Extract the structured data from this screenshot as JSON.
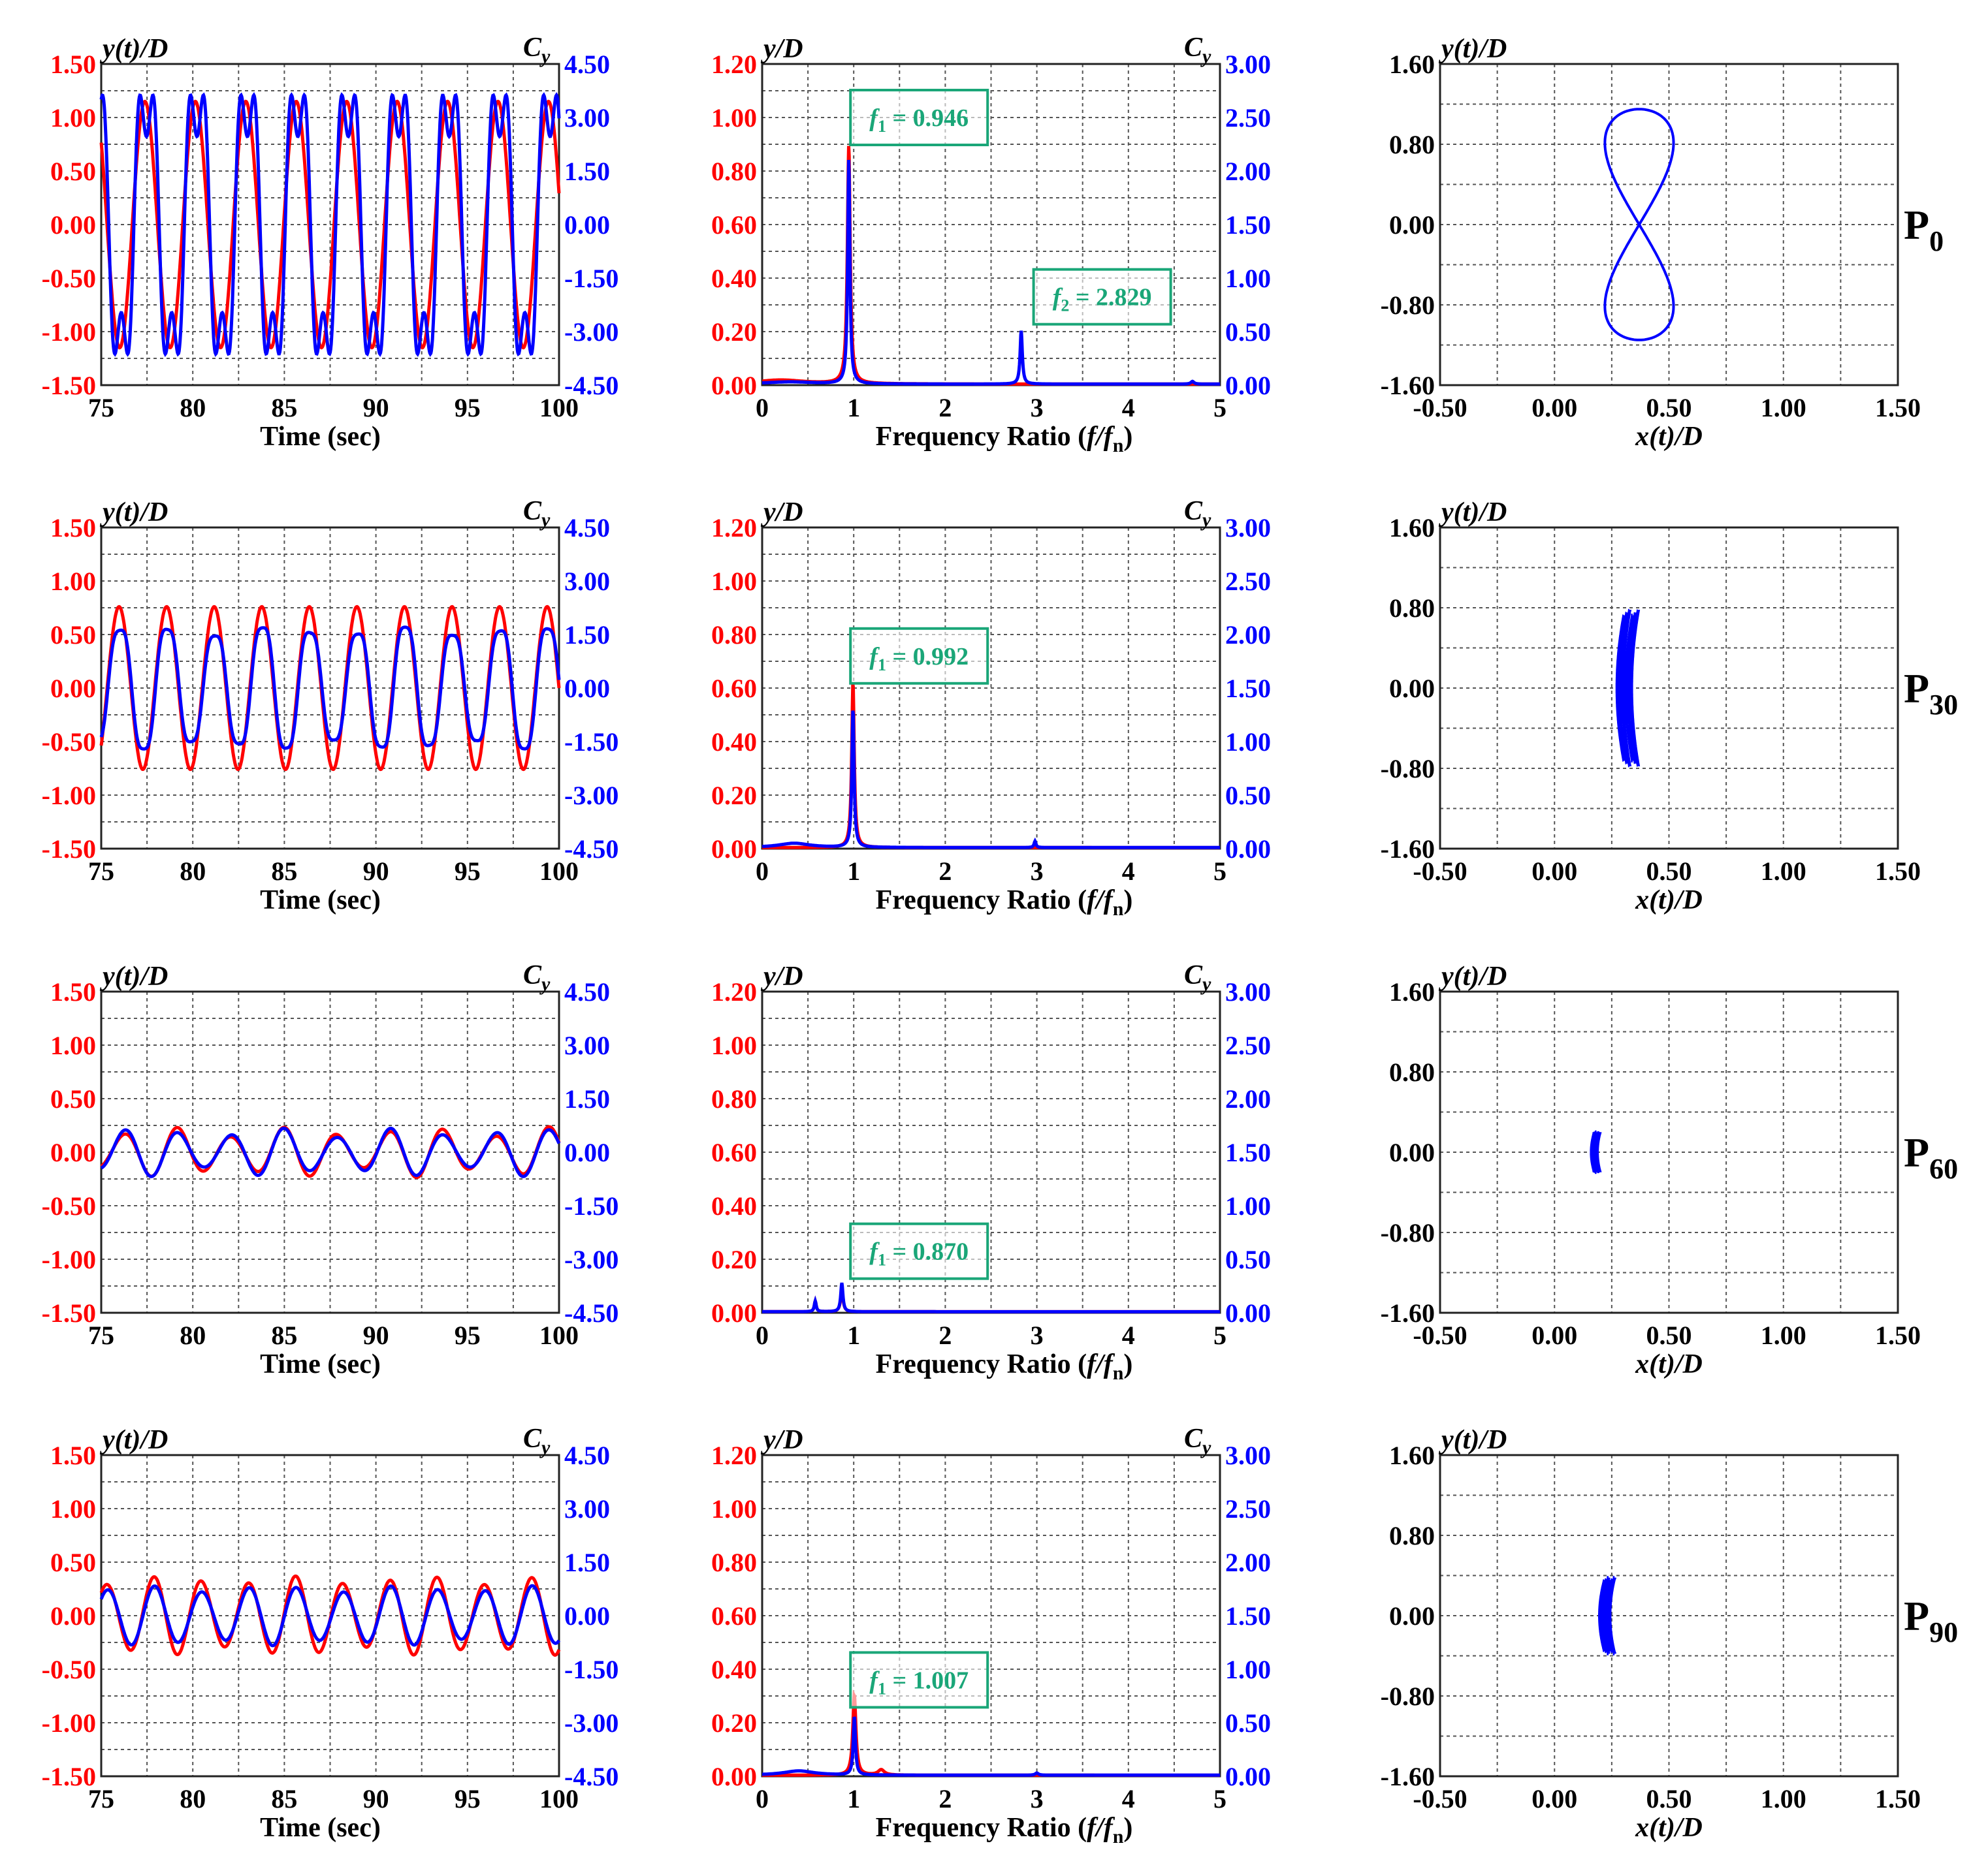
{
  "row_labels": [
    {
      "main": "P",
      "sub": "0"
    },
    {
      "main": "P",
      "sub": "30"
    },
    {
      "main": "P",
      "sub": "60"
    },
    {
      "main": "P",
      "sub": "90"
    }
  ],
  "panel_text": {
    "time_xlabel": "Time (sec)",
    "freq_xlabel_main": "Frequency Ratio (",
    "freq_xlabel_f": "f/f",
    "freq_xlabel_sub": "n",
    "freq_xlabel_close": ")",
    "time_ylabel": "y(t)/D",
    "freq_ylabel": "y/D",
    "orbit_ylabel": "y(t)/D",
    "orbit_xlabel": "x(t)/D",
    "right_label": "C",
    "right_label_sub": "y"
  },
  "colors": {
    "displacement": "#ff0000",
    "force": "#0000ff",
    "annotation": "#1aa678",
    "grid": "#555555"
  },
  "chart_data": [
    {
      "type": "line",
      "panel": "time-history",
      "row": "P0",
      "x_range": [
        75,
        100
      ],
      "x_ticks": [
        "75",
        "80",
        "85",
        "90",
        "95",
        "100"
      ],
      "ylim_left": [
        -1.5,
        1.5
      ],
      "y_ticks_left": [
        "1.50",
        "1.00",
        "0.50",
        "0.00",
        "-0.50",
        "-1.00",
        "-1.50"
      ],
      "ylim_right": [
        -4.5,
        4.5
      ],
      "y_ticks_right": [
        "4.50",
        "3.00",
        "1.50",
        "0.00",
        "-1.50",
        "-3.00",
        "-4.50"
      ],
      "series": [
        {
          "axis": "left",
          "amplitude": 1.15,
          "frequency_hz": 0.363,
          "phase": 1.0,
          "harmonic3": 0.0,
          "variation": 0.0
        },
        {
          "axis": "right",
          "amplitude": 3.0,
          "frequency_hz": 0.363,
          "phase": 0.8,
          "harmonic3": 0.35,
          "variation": 0.0
        }
      ]
    },
    {
      "type": "line",
      "panel": "spectrum",
      "row": "P0",
      "x_range": [
        0,
        5
      ],
      "x_ticks": [
        "0",
        "1",
        "2",
        "3",
        "4",
        "5"
      ],
      "ylim_left": [
        0,
        1.2
      ],
      "y_ticks_left": [
        "1.20",
        "1.00",
        "0.80",
        "0.60",
        "0.40",
        "0.20",
        "0.00"
      ],
      "ylim_right": [
        0,
        3.0
      ],
      "y_ticks_right": [
        "3.00",
        "2.50",
        "2.00",
        "1.50",
        "1.00",
        "0.50",
        "0.00"
      ],
      "peaks_left": [
        {
          "f": 0.946,
          "h": 0.89,
          "w": 0.045
        },
        {
          "f": 0.2,
          "h": 0.015,
          "w": 0.8
        }
      ],
      "peaks_right": [
        {
          "f": 0.946,
          "h": 2.1,
          "w": 0.035
        },
        {
          "f": 2.829,
          "h": 0.5,
          "w": 0.035
        },
        {
          "f": 4.7,
          "h": 0.025,
          "w": 0.05
        },
        {
          "f": 0.3,
          "h": 0.02,
          "w": 0.8
        }
      ],
      "annotations": [
        {
          "label": "1",
          "value": "0.946",
          "f": 1.0,
          "y": 1.0
        },
        {
          "label": "2",
          "value": "2.829",
          "f": 3.0,
          "y": 0.33
        }
      ]
    },
    {
      "type": "scatter",
      "panel": "orbit",
      "row": "P0",
      "x_range": [
        -0.5,
        1.5
      ],
      "x_ticks": [
        "-0.50",
        "0.00",
        "0.50",
        "1.00",
        "1.50"
      ],
      "ylim": [
        -1.6,
        1.6
      ],
      "y_ticks": [
        "1.60",
        "0.80",
        "0.00",
        "-0.80",
        "-1.60"
      ],
      "orbit": {
        "type": "figure8",
        "x_center": 0.37,
        "x_amp": 0.15,
        "y_amp": 1.15,
        "tilt": 0.0
      }
    },
    {
      "type": "line",
      "panel": "time-history",
      "row": "P30",
      "x_range": [
        75,
        100
      ],
      "x_ticks": [
        "75",
        "80",
        "85",
        "90",
        "95",
        "100"
      ],
      "ylim_left": [
        -1.5,
        1.5
      ],
      "y_ticks_left": [
        "1.50",
        "1.00",
        "0.50",
        "0.00",
        "-0.50",
        "-1.00",
        "-1.50"
      ],
      "ylim_right": [
        -4.5,
        4.5
      ],
      "y_ticks_right": [
        "4.50",
        "3.00",
        "1.50",
        "0.00",
        "-1.50",
        "-3.00",
        "-4.50"
      ],
      "series": [
        {
          "axis": "left",
          "amplitude": 0.76,
          "frequency_hz": 0.385,
          "phase": 0.0,
          "harmonic3": 0.0,
          "variation": 0.0
        },
        {
          "axis": "right",
          "amplitude": 1.65,
          "frequency_hz": 0.385,
          "phase": -0.1,
          "harmonic3": 0.1,
          "variation": 0.08
        }
      ]
    },
    {
      "type": "line",
      "panel": "spectrum",
      "row": "P30",
      "x_range": [
        0,
        5
      ],
      "x_ticks": [
        "0",
        "1",
        "2",
        "3",
        "4",
        "5"
      ],
      "ylim_left": [
        0,
        1.2
      ],
      "y_ticks_left": [
        "1.20",
        "1.00",
        "0.80",
        "0.60",
        "0.40",
        "0.20",
        "0.00"
      ],
      "ylim_right": [
        0,
        3.0
      ],
      "y_ticks_right": [
        "3.00",
        "2.50",
        "2.00",
        "1.50",
        "1.00",
        "0.50",
        "0.00"
      ],
      "peaks_left": [
        {
          "f": 0.992,
          "h": 0.62,
          "w": 0.04
        }
      ],
      "peaks_right": [
        {
          "f": 0.992,
          "h": 1.3,
          "w": 0.035
        },
        {
          "f": 2.98,
          "h": 0.06,
          "w": 0.03
        },
        {
          "f": 0.35,
          "h": 0.04,
          "w": 0.5
        }
      ],
      "annotations": [
        {
          "label": "1",
          "value": "0.992",
          "f": 1.0,
          "y": 0.72
        }
      ]
    },
    {
      "type": "scatter",
      "panel": "orbit",
      "row": "P30",
      "x_range": [
        -0.5,
        1.5
      ],
      "x_ticks": [
        "-0.50",
        "0.00",
        "0.50",
        "1.00",
        "1.50"
      ],
      "ylim": [
        -1.6,
        1.6
      ],
      "y_ticks": [
        "1.60",
        "0.80",
        "0.00",
        "-0.80",
        "-1.60"
      ],
      "orbit": {
        "type": "band",
        "x_center": 0.32,
        "x_amp": 0.05,
        "y_amp": 0.78,
        "tilt": 0.0
      }
    },
    {
      "type": "line",
      "panel": "time-history",
      "row": "P60",
      "x_range": [
        75,
        100
      ],
      "x_ticks": [
        "75",
        "80",
        "85",
        "90",
        "95",
        "100"
      ],
      "ylim_left": [
        -1.5,
        1.5
      ],
      "y_ticks_left": [
        "1.50",
        "1.00",
        "0.50",
        "0.00",
        "-0.50",
        "-1.00",
        "-1.50"
      ],
      "ylim_right": [
        -4.5,
        4.5
      ],
      "y_ticks_right": [
        "4.50",
        "3.00",
        "1.50",
        "0.00",
        "-1.50",
        "-3.00",
        "-4.50"
      ],
      "series": [
        {
          "axis": "left",
          "amplitude": 0.19,
          "frequency_hz": 0.345,
          "phase": -0.4,
          "harmonic3": 0.0,
          "variation": 0.25
        },
        {
          "axis": "right",
          "amplitude": 0.55,
          "frequency_hz": 0.345,
          "phase": -0.45,
          "harmonic3": 0.0,
          "variation": 0.25
        }
      ]
    },
    {
      "type": "line",
      "panel": "spectrum",
      "row": "P60",
      "x_range": [
        0,
        5
      ],
      "x_ticks": [
        "0",
        "1",
        "2",
        "3",
        "4",
        "5"
      ],
      "ylim_left": [
        0,
        1.2
      ],
      "y_ticks_left": [
        "1.20",
        "1.00",
        "0.80",
        "0.60",
        "0.40",
        "0.20",
        "0.00"
      ],
      "ylim_right": [
        0,
        3.0
      ],
      "y_ticks_right": [
        "3.00",
        "2.50",
        "2.00",
        "1.50",
        "1.00",
        "0.50",
        "0.00"
      ],
      "peaks_left": [
        {
          "f": 0.87,
          "h": 0.08,
          "w": 0.04
        },
        {
          "f": 0.58,
          "h": 0.04,
          "w": 0.03
        }
      ],
      "peaks_right": [
        {
          "f": 0.87,
          "h": 0.27,
          "w": 0.035
        },
        {
          "f": 0.58,
          "h": 0.1,
          "w": 0.03
        }
      ],
      "annotations": [
        {
          "label": "1",
          "value": "0.870",
          "f": 1.0,
          "y": 0.23
        }
      ]
    },
    {
      "type": "scatter",
      "panel": "orbit",
      "row": "P60",
      "x_range": [
        -0.5,
        1.5
      ],
      "x_ticks": [
        "-0.50",
        "0.00",
        "0.50",
        "1.00",
        "1.50"
      ],
      "ylim": [
        -1.6,
        1.6
      ],
      "y_ticks": [
        "1.60",
        "0.80",
        "0.00",
        "-0.80",
        "-1.60"
      ],
      "orbit": {
        "type": "band",
        "x_center": 0.18,
        "x_amp": 0.02,
        "y_amp": 0.2,
        "tilt": 0.0
      }
    },
    {
      "type": "line",
      "panel": "time-history",
      "row": "P90",
      "x_range": [
        75,
        100
      ],
      "x_ticks": [
        "75",
        "80",
        "85",
        "90",
        "95",
        "100"
      ],
      "ylim_left": [
        -1.5,
        1.5
      ],
      "y_ticks_left": [
        "1.50",
        "1.00",
        "0.50",
        "0.00",
        "-0.50",
        "-1.00",
        "-1.50"
      ],
      "ylim_right": [
        -4.5,
        4.5
      ],
      "y_ticks_right": [
        "4.50",
        "3.00",
        "1.50",
        "0.00",
        "-1.50",
        "-3.00",
        "-4.50"
      ],
      "series": [
        {
          "axis": "left",
          "amplitude": 0.33,
          "frequency_hz": 0.388,
          "phase": 0.2,
          "harmonic3": 0.0,
          "variation": 0.12
        },
        {
          "axis": "right",
          "amplitude": 0.75,
          "frequency_hz": 0.388,
          "phase": 0.1,
          "harmonic3": 0.0,
          "variation": 0.12
        }
      ]
    },
    {
      "type": "line",
      "panel": "spectrum",
      "row": "P90",
      "x_range": [
        0,
        5
      ],
      "x_ticks": [
        "0",
        "1",
        "2",
        "3",
        "4",
        "5"
      ],
      "ylim_left": [
        0,
        1.2
      ],
      "y_ticks_left": [
        "1.20",
        "1.00",
        "0.80",
        "0.60",
        "0.40",
        "0.20",
        "0.00"
      ],
      "ylim_right": [
        0,
        3.0
      ],
      "y_ticks_right": [
        "3.00",
        "2.50",
        "2.00",
        "1.50",
        "1.00",
        "0.50",
        "0.00"
      ],
      "peaks_left": [
        {
          "f": 1.007,
          "h": 0.3,
          "w": 0.05
        },
        {
          "f": 1.3,
          "h": 0.02,
          "w": 0.1
        }
      ],
      "peaks_right": [
        {
          "f": 1.007,
          "h": 0.55,
          "w": 0.035
        },
        {
          "f": 0.4,
          "h": 0.04,
          "w": 0.5
        },
        {
          "f": 3.0,
          "h": 0.02,
          "w": 0.05
        }
      ],
      "annotations": [
        {
          "label": "1",
          "value": "1.007",
          "f": 1.0,
          "y": 0.36
        }
      ]
    },
    {
      "type": "scatter",
      "panel": "orbit",
      "row": "P90",
      "x_range": [
        -0.5,
        1.5
      ],
      "x_ticks": [
        "-0.50",
        "0.00",
        "0.50",
        "1.00",
        "1.50"
      ],
      "ylim": [
        -1.6,
        1.6
      ],
      "y_ticks": [
        "1.60",
        "0.80",
        "0.00",
        "-0.80",
        "-1.60"
      ],
      "orbit": {
        "type": "band",
        "x_center": 0.23,
        "x_amp": 0.035,
        "y_amp": 0.38,
        "tilt": 0.0
      }
    }
  ]
}
